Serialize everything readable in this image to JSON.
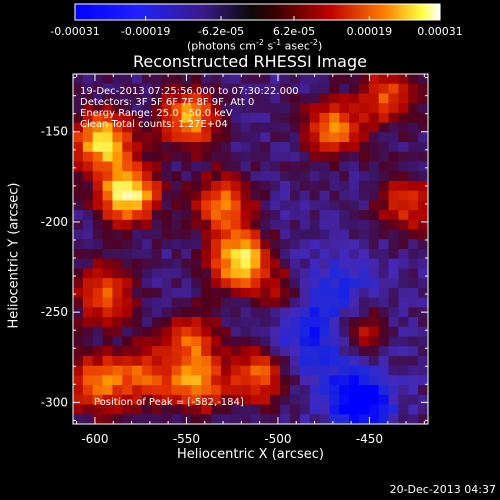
{
  "chart_data": {
    "type": "heatmap",
    "title": "Reconstructed RHESSI Image",
    "xlabel": "Heliocentric X (arcsec)",
    "ylabel": "Heliocentric Y (arcsec)",
    "xlim": [
      -612,
      -418
    ],
    "ylim": [
      -312,
      -118
    ],
    "xticks": [
      -600,
      -550,
      -500,
      -450
    ],
    "yticks": [
      -300,
      -250,
      -200,
      -150
    ],
    "colorbar": {
      "ticks": [
        "-0.00031",
        "-0.00019",
        "-6.2e-05",
        "6.2e-05",
        "0.00019",
        "0.00031"
      ],
      "label_main": "(photons cm",
      "label_exp1": "-2",
      "label_mid": " s",
      "label_exp2": "-1",
      "label_mid2": " asec",
      "label_exp3": "-2",
      "label_end": ")",
      "range": [
        -0.00031,
        0.00031
      ]
    },
    "info": {
      "time": "19-Dec-2013 07:25:56.000 to 07:30:22.000",
      "detectors": "Detectors: 3F 5F 6F 7F 8F 9F, Att 0",
      "energy": "Energy Range: 25.0 - 50.0 keV",
      "method": "Clean    Total counts: 1.27E+04",
      "peak": "Position of Peak = [-582,-184]"
    },
    "sources": [
      {
        "x": -582,
        "y": -184,
        "intensity": 0.95
      },
      {
        "x": -596,
        "y": -155,
        "intensity": 0.85
      },
      {
        "x": -520,
        "y": -222,
        "intensity": 0.9
      },
      {
        "x": -548,
        "y": -143,
        "intensity": 0.7
      },
      {
        "x": -530,
        "y": -190,
        "intensity": 0.6
      },
      {
        "x": -470,
        "y": -148,
        "intensity": 0.6
      },
      {
        "x": -455,
        "y": -260,
        "intensity": 0.55
      },
      {
        "x": -548,
        "y": -265,
        "intensity": 0.5
      },
      {
        "x": -595,
        "y": -240,
        "intensity": 0.55
      },
      {
        "x": -545,
        "y": -290,
        "intensity": 0.65
      },
      {
        "x": -510,
        "y": -285,
        "intensity": 0.6
      },
      {
        "x": -600,
        "y": -290,
        "intensity": 0.6
      },
      {
        "x": -575,
        "y": -285,
        "intensity": 0.5
      },
      {
        "x": -495,
        "y": -240,
        "intensity": 0.4
      },
      {
        "x": -430,
        "y": -190,
        "intensity": 0.45
      },
      {
        "x": -440,
        "y": -130,
        "intensity": 0.5
      }
    ]
  },
  "footer": {
    "date": "20-Dec-2013 04:37"
  }
}
